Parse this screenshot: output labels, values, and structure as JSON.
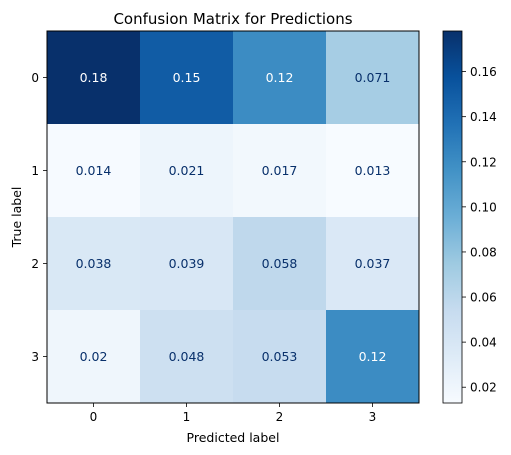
{
  "chart_data": {
    "type": "heatmap",
    "title": "Confusion Matrix for Predictions",
    "xlabel": "Predicted label",
    "ylabel": "True label",
    "x_categories": [
      "0",
      "1",
      "2",
      "3"
    ],
    "y_categories": [
      "0",
      "1",
      "2",
      "3"
    ],
    "values": [
      [
        0.18,
        0.15,
        0.12,
        0.071
      ],
      [
        0.014,
        0.021,
        0.017,
        0.013
      ],
      [
        0.038,
        0.039,
        0.058,
        0.037
      ],
      [
        0.02,
        0.048,
        0.053,
        0.12
      ]
    ],
    "cell_labels": [
      [
        "0.18",
        "0.15",
        "0.12",
        "0.071"
      ],
      [
        "0.014",
        "0.021",
        "0.017",
        "0.013"
      ],
      [
        "0.038",
        "0.039",
        "0.058",
        "0.037"
      ],
      [
        "0.02",
        "0.048",
        "0.053",
        "0.12"
      ]
    ],
    "colormap": "Blues",
    "colorbar": {
      "vmin": 0.013,
      "vmax": 0.178,
      "ticks": [
        0.02,
        0.04,
        0.06,
        0.08,
        0.1,
        0.12,
        0.14,
        0.16
      ],
      "tick_labels": [
        "0.02",
        "0.04",
        "0.06",
        "0.08",
        "0.10",
        "0.12",
        "0.14",
        "0.16"
      ]
    },
    "grid": false
  }
}
